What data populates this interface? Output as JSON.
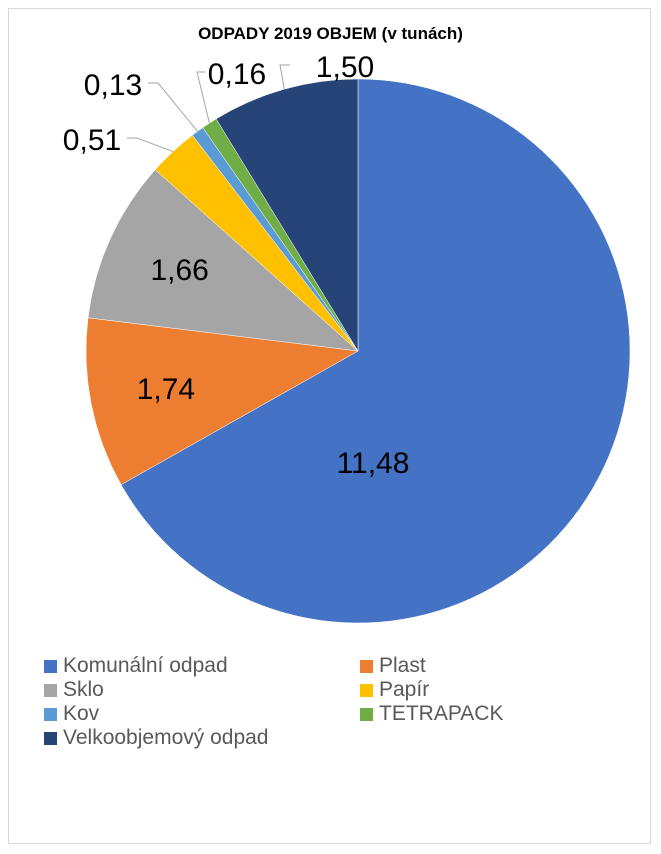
{
  "chart_data": {
    "type": "pie",
    "title": "ODPADY 2019 OBJEM (v tunách)",
    "categories": [
      "Komunální odpad",
      "Plast",
      "Sklo",
      "Papír",
      "Kov",
      "TETRAPACK",
      "Velkoobjemový odpad"
    ],
    "values": [
      11.48,
      1.74,
      1.66,
      0.51,
      0.13,
      0.16,
      1.5
    ],
    "data_labels": [
      "11,48",
      "1,74",
      "1,66",
      "0,51",
      "0,13",
      "0,16",
      "1,50"
    ],
    "colors": [
      "#4472c4",
      "#ed7d31",
      "#a5a5a5",
      "#ffc000",
      "#5b9bd5",
      "#70ad47",
      "#264478"
    ],
    "legend_position": "bottom",
    "start_angle": "12 o'clock, clockwise"
  }
}
